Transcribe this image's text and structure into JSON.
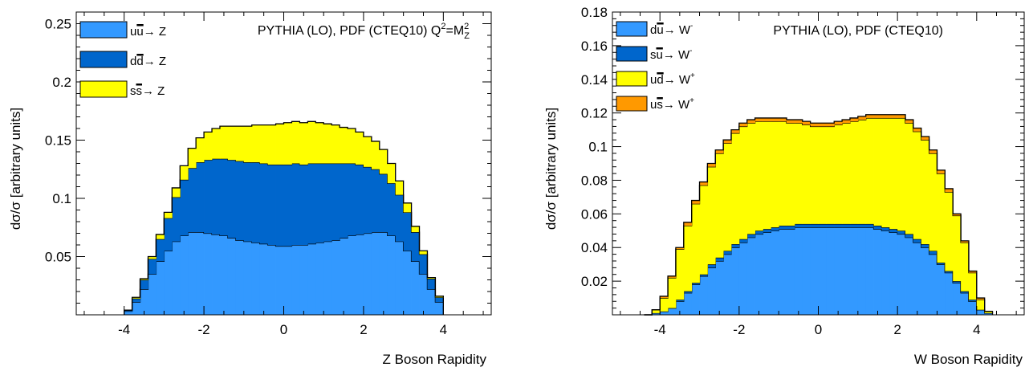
{
  "chart_data": [
    {
      "type": "stacked-step-histogram",
      "title": "PYTHIA (LO), PDF (CTEQ10) Q²=M²_Z",
      "annotation": {
        "main": "PYTHIA (LO), PDF (CTEQ10) Q",
        "q_sup": "2",
        "eq": "=M",
        "m_sub": "Z",
        "m_sup": "2"
      },
      "xlabel": "Z Boson Rapidity",
      "ylabel": "dσ/σ [arbitrary units]",
      "xlim": [
        -5.2,
        5.2
      ],
      "ylim": [
        0,
        0.26
      ],
      "bin_width": 0.2,
      "xticks": [
        -4,
        -2,
        0,
        2,
        4
      ],
      "xtick_labels": [
        "-4",
        "-2",
        "0",
        "2",
        "4"
      ],
      "yticks": [
        0.05,
        0.1,
        0.15,
        0.2,
        0.25
      ],
      "ytick_labels": [
        "0.05",
        "0.1",
        "0.15",
        "0.2",
        "0.25"
      ],
      "grid": false,
      "legend_position": "top-left",
      "x": [
        -4.0,
        -3.8,
        -3.6,
        -3.4,
        -3.2,
        -3.0,
        -2.8,
        -2.6,
        -2.4,
        -2.2,
        -2.0,
        -1.8,
        -1.6,
        -1.4,
        -1.2,
        -1.0,
        -0.8,
        -0.6,
        -0.4,
        -0.2,
        0.0,
        0.2,
        0.4,
        0.6,
        0.8,
        1.0,
        1.2,
        1.4,
        1.6,
        1.8,
        2.0,
        2.2,
        2.4,
        2.6,
        2.8,
        3.0,
        3.2,
        3.4,
        3.6,
        3.8
      ],
      "series": [
        {
          "name": "uū→ Z",
          "label": {
            "a": "u",
            "bar": "u",
            "arrow": "→ Z"
          },
          "color": "#3399ff",
          "values": [
            0.003,
            0.011,
            0.022,
            0.035,
            0.046,
            0.055,
            0.063,
            0.068,
            0.071,
            0.071,
            0.07,
            0.069,
            0.068,
            0.066,
            0.064,
            0.063,
            0.062,
            0.061,
            0.06,
            0.059,
            0.059,
            0.06,
            0.06,
            0.061,
            0.062,
            0.063,
            0.064,
            0.066,
            0.068,
            0.069,
            0.07,
            0.071,
            0.071,
            0.068,
            0.063,
            0.055,
            0.046,
            0.035,
            0.022,
            0.011
          ]
        },
        {
          "name": "dd̄→ Z",
          "label": {
            "a": "d",
            "bar": "d",
            "arrow": "→ Z"
          },
          "color": "#0066cc",
          "values": [
            0.001,
            0.003,
            0.008,
            0.013,
            0.019,
            0.028,
            0.038,
            0.048,
            0.055,
            0.06,
            0.063,
            0.065,
            0.066,
            0.067,
            0.068,
            0.068,
            0.069,
            0.069,
            0.069,
            0.07,
            0.07,
            0.07,
            0.069,
            0.069,
            0.068,
            0.067,
            0.066,
            0.064,
            0.062,
            0.06,
            0.057,
            0.054,
            0.05,
            0.045,
            0.04,
            0.033,
            0.025,
            0.017,
            0.009,
            0.004
          ]
        },
        {
          "name": "ss̄→ Z",
          "label": {
            "a": "s",
            "bar": "s",
            "arrow": "→ Z"
          },
          "color": "#ffff00",
          "values": [
            0.0,
            0.001,
            0.001,
            0.002,
            0.004,
            0.005,
            0.008,
            0.012,
            0.017,
            0.021,
            0.024,
            0.026,
            0.028,
            0.029,
            0.03,
            0.031,
            0.032,
            0.033,
            0.034,
            0.035,
            0.036,
            0.036,
            0.036,
            0.036,
            0.035,
            0.034,
            0.033,
            0.031,
            0.03,
            0.028,
            0.026,
            0.024,
            0.021,
            0.017,
            0.012,
            0.008,
            0.005,
            0.003,
            0.001,
            0.001
          ]
        }
      ]
    },
    {
      "type": "stacked-step-histogram",
      "title": "PYTHIA (LO), PDF (CTEQ10)",
      "annotation": {
        "main": "PYTHIA (LO), PDF (CTEQ10)"
      },
      "xlabel": "W Boson Rapidity",
      "ylabel": "dσ/σ [arbitrary units]",
      "xlim": [
        -5.2,
        5.2
      ],
      "ylim": [
        0,
        0.18
      ],
      "bin_width": 0.2,
      "xticks": [
        -4,
        -2,
        0,
        2,
        4
      ],
      "xtick_labels": [
        "-4",
        "-2",
        "0",
        "2",
        "4"
      ],
      "yticks": [
        0.02,
        0.04,
        0.06,
        0.08,
        0.1,
        0.12,
        0.14,
        0.16,
        0.18
      ],
      "ytick_labels": [
        "0.02",
        "0.04",
        "0.06",
        "0.08",
        "0.1",
        "0.12",
        "0.14",
        "0.16",
        "0.18"
      ],
      "grid": false,
      "legend_position": "top-left",
      "x": [
        -4.4,
        -4.2,
        -4.0,
        -3.8,
        -3.6,
        -3.4,
        -3.2,
        -3.0,
        -2.8,
        -2.6,
        -2.4,
        -2.2,
        -2.0,
        -1.8,
        -1.6,
        -1.4,
        -1.2,
        -1.0,
        -0.8,
        -0.6,
        -0.4,
        -0.2,
        0.0,
        0.2,
        0.4,
        0.6,
        0.8,
        1.0,
        1.2,
        1.4,
        1.6,
        1.8,
        2.0,
        2.2,
        2.4,
        2.6,
        2.8,
        3.0,
        3.2,
        3.4,
        3.6,
        3.8,
        4.0,
        4.2
      ],
      "series": [
        {
          "name": "dū→ W⁻",
          "label": {
            "a": "d",
            "bar": "u",
            "arrow": "→ W",
            "sup": "-"
          },
          "color": "#3399ff",
          "values": [
            0.0,
            0.001,
            0.002,
            0.004,
            0.008,
            0.013,
            0.018,
            0.023,
            0.028,
            0.032,
            0.036,
            0.04,
            0.043,
            0.046,
            0.048,
            0.049,
            0.05,
            0.051,
            0.051,
            0.052,
            0.052,
            0.052,
            0.052,
            0.052,
            0.052,
            0.052,
            0.052,
            0.052,
            0.052,
            0.051,
            0.05,
            0.049,
            0.048,
            0.046,
            0.043,
            0.04,
            0.036,
            0.03,
            0.025,
            0.019,
            0.013,
            0.008,
            0.003,
            0.001
          ]
        },
        {
          "name": "sū→ W⁻",
          "label": {
            "a": "s",
            "bar": "u",
            "arrow": "→ W",
            "sup": "-"
          },
          "color": "#0066cc",
          "values": [
            0.0,
            0.0,
            0.0,
            0.0,
            0.001,
            0.001,
            0.001,
            0.001,
            0.002,
            0.002,
            0.002,
            0.002,
            0.002,
            0.002,
            0.002,
            0.002,
            0.002,
            0.002,
            0.002,
            0.002,
            0.002,
            0.002,
            0.002,
            0.002,
            0.002,
            0.002,
            0.002,
            0.002,
            0.002,
            0.002,
            0.002,
            0.002,
            0.002,
            0.002,
            0.002,
            0.002,
            0.002,
            0.001,
            0.001,
            0.001,
            0.001,
            0.001,
            0.0,
            0.0
          ]
        },
        {
          "name": "ud̄→ W⁺",
          "label": {
            "a": "u",
            "bar": "d",
            "arrow": "→ W",
            "sup": "+"
          },
          "color": "#ffff00",
          "values": [
            0.0,
            0.002,
            0.008,
            0.018,
            0.03,
            0.039,
            0.047,
            0.053,
            0.058,
            0.062,
            0.064,
            0.066,
            0.067,
            0.066,
            0.065,
            0.064,
            0.063,
            0.062,
            0.061,
            0.06,
            0.059,
            0.058,
            0.058,
            0.058,
            0.059,
            0.06,
            0.061,
            0.062,
            0.063,
            0.064,
            0.065,
            0.066,
            0.067,
            0.066,
            0.064,
            0.062,
            0.058,
            0.053,
            0.047,
            0.039,
            0.029,
            0.016,
            0.006,
            0.001
          ]
        },
        {
          "name": "us̄→ W⁺",
          "label": {
            "a": "u",
            "bar": "s",
            "arrow": "→ W",
            "sup": "+"
          },
          "color": "#ff9900",
          "values": [
            0.0,
            0.0,
            0.001,
            0.001,
            0.001,
            0.002,
            0.002,
            0.002,
            0.002,
            0.002,
            0.002,
            0.002,
            0.002,
            0.002,
            0.002,
            0.002,
            0.002,
            0.002,
            0.002,
            0.002,
            0.002,
            0.002,
            0.002,
            0.002,
            0.002,
            0.002,
            0.002,
            0.002,
            0.002,
            0.002,
            0.002,
            0.002,
            0.002,
            0.002,
            0.002,
            0.002,
            0.002,
            0.002,
            0.002,
            0.001,
            0.001,
            0.001,
            0.001,
            0.0
          ]
        }
      ]
    }
  ]
}
